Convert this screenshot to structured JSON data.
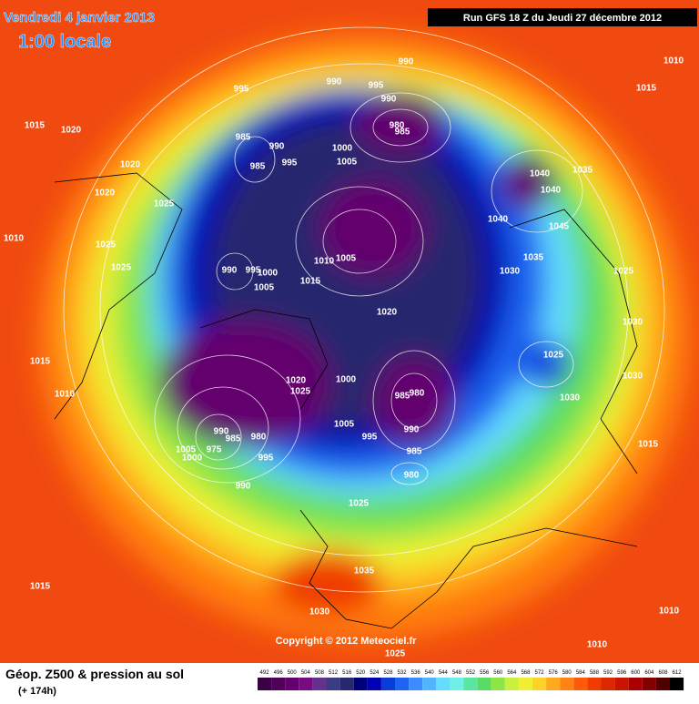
{
  "header": {
    "title": "Vendredi 4 janvier 2013",
    "time": "1:00 locale",
    "run": "Run GFS 18 Z du Jeudi 27 décembre 2012"
  },
  "map": {
    "isobar_labels": [
      "990",
      "995",
      "990",
      "995",
      "990",
      "980",
      "985",
      "985",
      "990",
      "1000",
      "1005",
      "995",
      "985",
      "1040",
      "1035",
      "1040",
      "1040",
      "1045",
      "1010",
      "1025",
      "1020",
      "1020",
      "1015",
      "1020",
      "1010",
      "1015",
      "990",
      "995",
      "1000",
      "1005",
      "1010",
      "1005",
      "1015",
      "1035",
      "1030",
      "1025",
      "1025",
      "1025",
      "1020",
      "1030",
      "1025",
      "1030",
      "1030",
      "1015",
      "1010",
      "1020",
      "1025",
      "1000",
      "985",
      "980",
      "990",
      "1005",
      "995",
      "985",
      "980",
      "990",
      "985",
      "980",
      "975",
      "1005",
      "1000",
      "995",
      "990",
      "1015",
      "1025",
      "1035",
      "1030",
      "1015",
      "1010",
      "1010",
      "1025"
    ],
    "copyright": "Copyright © 2012 Meteociel.fr"
  },
  "footer": {
    "title": "Géop. Z500 & pression au sol",
    "lead": "(+ 174h)",
    "scale": [
      492,
      496,
      500,
      504,
      508,
      512,
      516,
      520,
      524,
      528,
      532,
      536,
      540,
      544,
      548,
      552,
      556,
      560,
      564,
      568,
      572,
      576,
      580,
      584,
      588,
      592,
      596,
      600,
      604,
      608,
      612
    ],
    "scale_colors": [
      "#3c0046",
      "#50005a",
      "#64006e",
      "#780a82",
      "#64328c",
      "#3c3c82",
      "#28286e",
      "#000078",
      "#0000b4",
      "#0a3cdc",
      "#1e64f0",
      "#3c8cff",
      "#50b4ff",
      "#64dcff",
      "#6ef0e6",
      "#5ae6a0",
      "#5adc64",
      "#8ce646",
      "#c8f03c",
      "#f0f032",
      "#ffd228",
      "#ffaa1e",
      "#ff8214",
      "#ff5a0a",
      "#f03c00",
      "#dc2800",
      "#c81400",
      "#aa0000",
      "#820000",
      "#500000",
      "#000000"
    ]
  }
}
